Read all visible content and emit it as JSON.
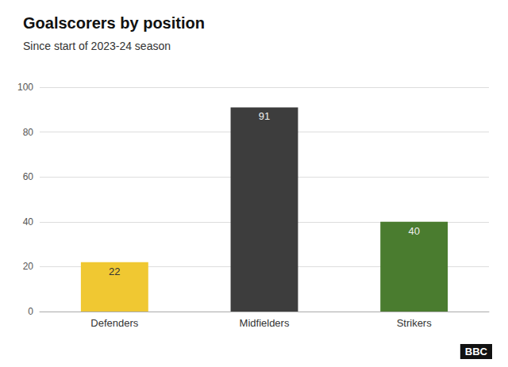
{
  "chart_data": {
    "type": "bar",
    "title": "Goalscorers by position",
    "subtitle": "Since start of 2023-24 season",
    "categories": [
      "Defenders",
      "Midfielders",
      "Strikers"
    ],
    "values": [
      22,
      91,
      40
    ],
    "colors": [
      "#f0c832",
      "#3d3d3d",
      "#4a7c2f"
    ],
    "ylim": [
      0,
      100
    ],
    "yticks": [
      0,
      20,
      40,
      60,
      80,
      100
    ],
    "grid": true,
    "data_labels": true,
    "annotation": "BBC"
  }
}
